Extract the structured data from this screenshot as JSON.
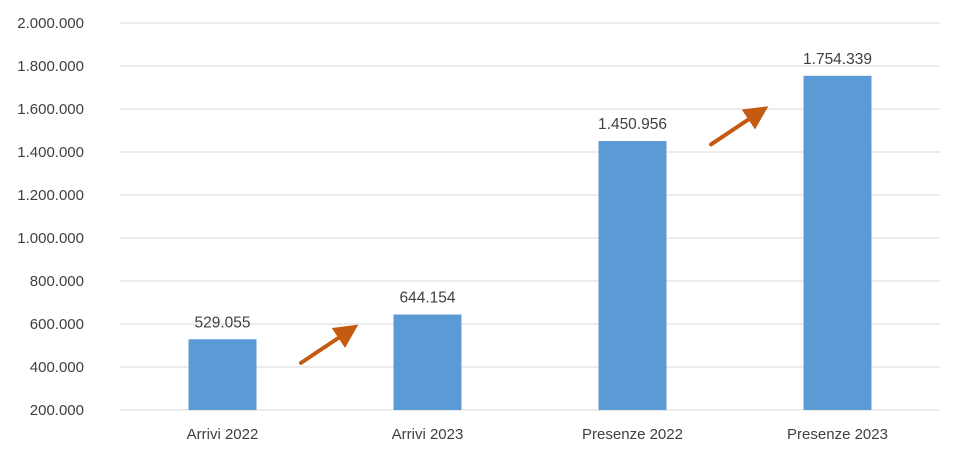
{
  "chart_data": {
    "type": "bar",
    "categories": [
      "Arrivi 2022",
      "Arrivi 2023",
      "Presenze 2022",
      "Presenze 2023"
    ],
    "values": [
      529055,
      644154,
      1450956,
      1754339
    ],
    "data_labels": [
      "529.055",
      "644.154",
      "1.450.956",
      "1.754.339"
    ],
    "ylim": [
      200000,
      2000000
    ],
    "yticks": [
      200000,
      400000,
      600000,
      800000,
      1000000,
      1200000,
      1400000,
      1600000,
      1800000,
      2000000
    ],
    "ytick_labels": [
      "200.000",
      "400.000",
      "600.000",
      "800.000",
      "1.000.000",
      "1.200.000",
      "1.400.000",
      "1.600.000",
      "1.800.000",
      "2.000.000"
    ],
    "title": "",
    "xlabel": "",
    "ylabel": "",
    "grid": true,
    "legend": "none",
    "annotations": [
      {
        "type": "arrow",
        "between": [
          "Arrivi 2022",
          "Arrivi 2023"
        ],
        "direction": "up-right"
      },
      {
        "type": "arrow",
        "between": [
          "Presenze 2022",
          "Presenze 2023"
        ],
        "direction": "up-right"
      }
    ]
  },
  "colors": {
    "bar": "#5B9BD5",
    "arrow": "#C55A11",
    "grid": "#D9D9D9",
    "text": "#404040"
  }
}
